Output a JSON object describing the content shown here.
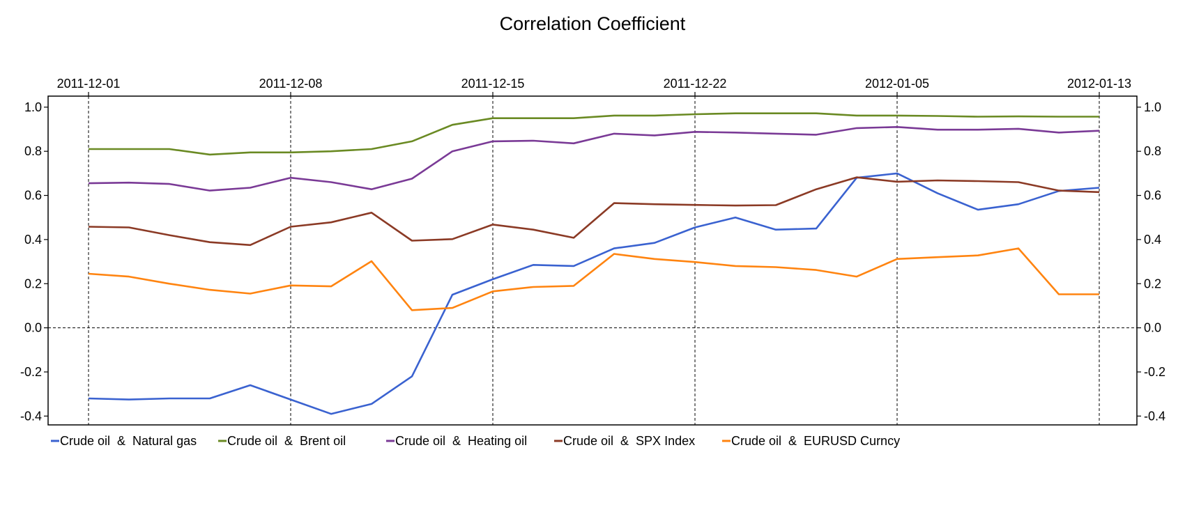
{
  "chart_data": {
    "type": "line",
    "title": "Correlation Coefficient",
    "xlabel": "",
    "ylabel": "",
    "x_tick_labels": [
      "2011-12-01",
      "2011-12-08",
      "2011-12-15",
      "2011-12-22",
      "2012-01-05",
      "2012-01-13"
    ],
    "x_tick_index": [
      0,
      5,
      10,
      15,
      20,
      25
    ],
    "y_ticks": [
      "1.0",
      "0.8",
      "0.6",
      "0.4",
      "0.2",
      "0.0",
      "-0.2",
      "-0.4"
    ],
    "ylim": [
      -0.44,
      1.05
    ],
    "grid": "dashed vertical lines at x ticks; dashed horizontal line at 0.0",
    "legend_position": "bottom",
    "series": [
      {
        "name": "Crude oil  &  Natural gas",
        "color": "#3a62d0",
        "values": [
          -0.32,
          -0.325,
          -0.32,
          -0.32,
          -0.26,
          -0.325,
          -0.39,
          -0.345,
          -0.22,
          0.15,
          0.22,
          0.285,
          0.28,
          0.36,
          0.385,
          0.455,
          0.5,
          0.445,
          0.45,
          0.68,
          0.7,
          0.61,
          0.535,
          0.56,
          0.62,
          0.635
        ]
      },
      {
        "name": "Crude oil  &  Brent oil",
        "color": "#6a8a23",
        "values": [
          0.81,
          0.81,
          0.81,
          0.785,
          0.795,
          0.795,
          0.8,
          0.81,
          0.845,
          0.92,
          0.95,
          0.95,
          0.95,
          0.962,
          0.962,
          0.968,
          0.972,
          0.972,
          0.972,
          0.962,
          0.962,
          0.96,
          0.957,
          0.958,
          0.957,
          0.957
        ]
      },
      {
        "name": "Crude oil  &  Heating oil",
        "color": "#7a3a96",
        "values": [
          0.655,
          0.658,
          0.652,
          0.622,
          0.635,
          0.68,
          0.66,
          0.628,
          0.676,
          0.8,
          0.845,
          0.848,
          0.836,
          0.88,
          0.872,
          0.888,
          0.885,
          0.88,
          0.875,
          0.905,
          0.91,
          0.898,
          0.898,
          0.902,
          0.885,
          0.893
        ]
      },
      {
        "name": "Crude oil  &  SPX Index",
        "color": "#8b3a25",
        "values": [
          0.458,
          0.455,
          0.42,
          0.388,
          0.375,
          0.458,
          0.478,
          0.522,
          0.395,
          0.402,
          0.468,
          0.445,
          0.408,
          0.565,
          0.56,
          0.557,
          0.554,
          0.556,
          0.628,
          0.682,
          0.662,
          0.668,
          0.665,
          0.66,
          0.622,
          0.615
        ]
      },
      {
        "name": "Crude oil  &  EURUSD Curncy",
        "color": "#ff8410",
        "values": [
          0.245,
          0.232,
          0.2,
          0.172,
          0.155,
          0.192,
          0.188,
          0.302,
          0.08,
          0.09,
          0.165,
          0.185,
          0.19,
          0.335,
          0.312,
          0.298,
          0.28,
          0.275,
          0.262,
          0.232,
          0.312,
          0.32,
          0.328,
          0.36,
          0.152,
          0.152
        ]
      }
    ]
  }
}
